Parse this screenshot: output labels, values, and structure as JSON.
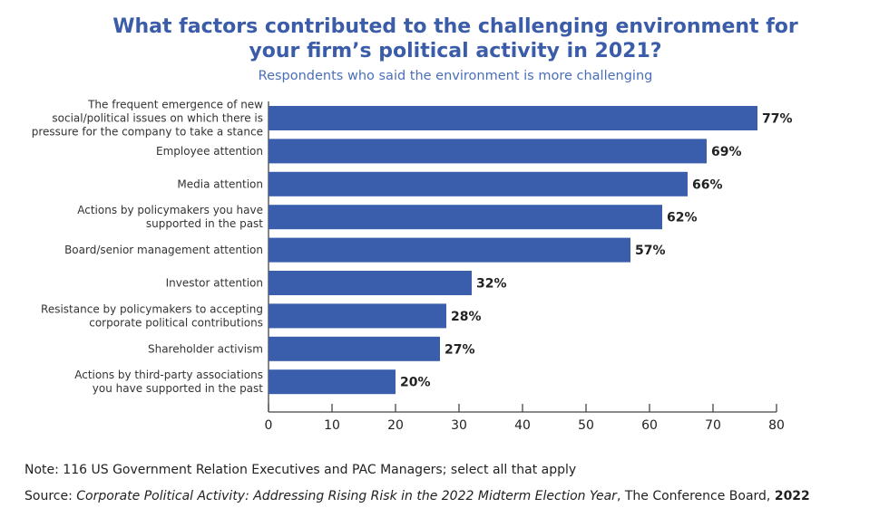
{
  "chart_data": {
    "type": "bar",
    "orientation": "horizontal",
    "title": "What factors contributed to the challenging environment for your firm’s political activity in 2021?",
    "title_lines": [
      "What factors contributed to the challenging environment for",
      "your firm’s political activity in 2021?"
    ],
    "subtitle": "Respondents who said the environment is more challenging",
    "categories": [
      [
        "The frequent emergence of new",
        "social/political issues on which there is",
        "pressure for the company to take a stance"
      ],
      [
        "Employee attention"
      ],
      [
        "Media attention"
      ],
      [
        "Actions by policymakers you have",
        "supported in the past"
      ],
      [
        "Board/senior management attention"
      ],
      [
        "Investor attention"
      ],
      [
        "Resistance by policymakers to accepting",
        "corporate political contributions"
      ],
      [
        "Shareholder activism"
      ],
      [
        "Actions by third-party associations",
        "you have supported in the past"
      ]
    ],
    "values": [
      77,
      69,
      66,
      62,
      57,
      32,
      28,
      27,
      20
    ],
    "data_labels": [
      "77%",
      "69%",
      "66%",
      "62%",
      "57%",
      "32%",
      "28%",
      "27%",
      "20%"
    ],
    "xlim": [
      0,
      80
    ],
    "xticks": [
      0,
      10,
      20,
      30,
      40,
      50,
      60,
      70,
      80
    ],
    "grid": false,
    "bar_color": "#3a5eab"
  },
  "footer": {
    "note": "Note: 116 US Government Relation Executives and PAC Managers; select all that apply",
    "source_prefix": "Source: ",
    "source_title": "Corporate Political Activity: Addressing Rising Risk in the 2022 Midterm Election Year",
    "source_suffix": ", The Conference Board, ",
    "source_year": "2022"
  }
}
